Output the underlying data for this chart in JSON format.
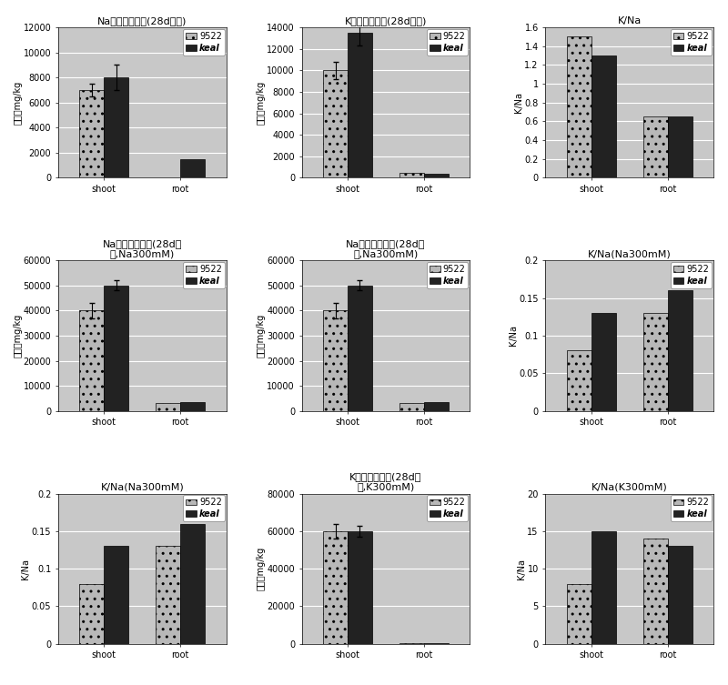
{
  "subplots": [
    {
      "title": "Na元素浓度测定(28d小苗)",
      "ylabel": "单位：mg/kg",
      "categories": [
        "shoot",
        "root"
      ],
      "series": [
        {
          "label": "9522",
          "values": [
            7000,
            0
          ],
          "yerr": [
            500,
            0
          ]
        },
        {
          "label": "keal",
          "values": [
            8000,
            1500
          ],
          "yerr": [
            1000,
            0
          ]
        }
      ],
      "ylim": [
        0,
        12000
      ],
      "yticks": [
        0,
        2000,
        4000,
        6000,
        8000,
        10000,
        12000
      ]
    },
    {
      "title": "K元素浓度测定(28d小苗)",
      "ylabel": "单位：mg/kg",
      "categories": [
        "shoot",
        "root"
      ],
      "series": [
        {
          "label": "9522",
          "values": [
            10000,
            500
          ],
          "yerr": [
            800,
            0
          ]
        },
        {
          "label": "keal",
          "values": [
            13500,
            400
          ],
          "yerr": [
            1200,
            0
          ]
        }
      ],
      "ylim": [
        0,
        14000
      ],
      "yticks": [
        0,
        2000,
        4000,
        6000,
        8000,
        10000,
        12000,
        14000
      ]
    },
    {
      "title": "K/Na",
      "ylabel": "K/Na",
      "categories": [
        "shoot",
        "root"
      ],
      "series": [
        {
          "label": "9522",
          "values": [
            1.5,
            0.65
          ],
          "yerr": [
            0,
            0
          ]
        },
        {
          "label": "keal",
          "values": [
            1.3,
            0.65
          ],
          "yerr": [
            0,
            0
          ]
        }
      ],
      "ylim": [
        0,
        1.6
      ],
      "yticks": [
        0,
        0.2,
        0.4,
        0.6,
        0.8,
        1.0,
        1.2,
        1.4,
        1.6
      ]
    },
    {
      "title": "Na元素浓度测定(28d小\n苗,Na300mM)",
      "ylabel": "单位：mg/kg",
      "categories": [
        "shoot",
        "root"
      ],
      "series": [
        {
          "label": "9522",
          "values": [
            40000,
            3000
          ],
          "yerr": [
            3000,
            0
          ]
        },
        {
          "label": "keal",
          "values": [
            50000,
            3500
          ],
          "yerr": [
            2000,
            0
          ]
        }
      ],
      "ylim": [
        0,
        60000
      ],
      "yticks": [
        0,
        10000,
        20000,
        30000,
        40000,
        50000,
        60000
      ]
    },
    {
      "title": "Na元素浓度测定(28d小\n苗,Na300mM)",
      "ylabel": "单位：mg/kg",
      "categories": [
        "shoot",
        "root"
      ],
      "series": [
        {
          "label": "9522",
          "values": [
            40000,
            3000
          ],
          "yerr": [
            3000,
            0
          ]
        },
        {
          "label": "keal",
          "values": [
            50000,
            3500
          ],
          "yerr": [
            2000,
            0
          ]
        }
      ],
      "ylim": [
        0,
        60000
      ],
      "yticks": [
        0,
        10000,
        20000,
        30000,
        40000,
        50000,
        60000
      ]
    },
    {
      "title": "K/Na(Na300mM)",
      "ylabel": "K/Na",
      "categories": [
        "shoot",
        "root"
      ],
      "series": [
        {
          "label": "9522",
          "values": [
            0.08,
            0.13
          ],
          "yerr": [
            0,
            0
          ]
        },
        {
          "label": "keal",
          "values": [
            0.13,
            0.16
          ],
          "yerr": [
            0,
            0
          ]
        }
      ],
      "ylim": [
        0,
        0.2
      ],
      "yticks": [
        0,
        0.05,
        0.1,
        0.15,
        0.2
      ]
    },
    {
      "title": "K/Na(Na300mM)",
      "ylabel": "K/Na",
      "categories": [
        "shoot",
        "root"
      ],
      "series": [
        {
          "label": "9522",
          "values": [
            0.08,
            0.13
          ],
          "yerr": [
            0,
            0
          ]
        },
        {
          "label": "keal",
          "values": [
            0.13,
            0.16
          ],
          "yerr": [
            0,
            0
          ]
        }
      ],
      "ylim": [
        0,
        0.2
      ],
      "yticks": [
        0,
        0.05,
        0.1,
        0.15,
        0.2
      ]
    },
    {
      "title": "K元素浓度测定(28d小\n苗,K300mM)",
      "ylabel": "单位：mg/kg",
      "categories": [
        "shoot",
        "root"
      ],
      "series": [
        {
          "label": "9522",
          "values": [
            60000,
            500
          ],
          "yerr": [
            4000,
            0
          ]
        },
        {
          "label": "keal",
          "values": [
            60000,
            500
          ],
          "yerr": [
            3000,
            0
          ]
        }
      ],
      "ylim": [
        0,
        80000
      ],
      "yticks": [
        0,
        20000,
        40000,
        60000,
        80000
      ]
    },
    {
      "title": "K/Na(K300mM)",
      "ylabel": "K/Na",
      "categories": [
        "shoot",
        "root"
      ],
      "series": [
        {
          "label": "9522",
          "values": [
            8,
            14
          ],
          "yerr": [
            0,
            0
          ]
        },
        {
          "label": "keal",
          "values": [
            15,
            13
          ],
          "yerr": [
            0,
            0
          ]
        }
      ],
      "ylim": [
        0,
        20
      ],
      "yticks": [
        0,
        5,
        10,
        15,
        20
      ]
    }
  ],
  "color_9522": "#b8b8b8",
  "color_keal": "#222222",
  "hatch_9522": "..",
  "hatch_keal": "",
  "figure_bg": "#ffffff",
  "plot_bg": "#c8c8c8",
  "grid_color": "#ffffff",
  "font_size_title": 8,
  "font_size_tick": 7,
  "font_size_label": 7,
  "font_size_legend": 7,
  "bar_width": 0.32
}
